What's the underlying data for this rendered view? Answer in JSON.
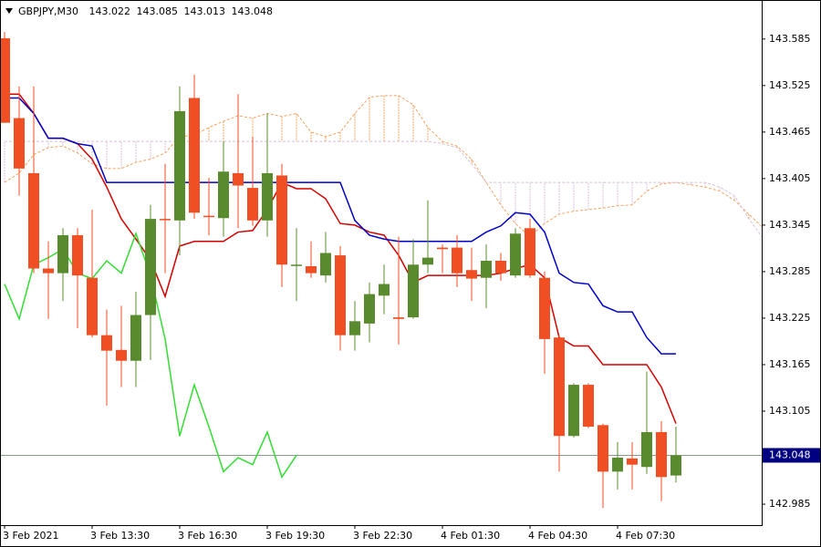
{
  "chart_data": {
    "type": "candlestick",
    "title": "GBPJPY,M30",
    "categories": [
      "3 Feb 2021",
      null,
      null,
      null,
      null,
      null,
      "3 Feb 13:30",
      null,
      null,
      null,
      null,
      null,
      "3 Feb 16:30",
      null,
      null,
      null,
      null,
      null,
      "3 Feb 19:30",
      null,
      null,
      null,
      null,
      null,
      "3 Feb 22:30",
      null,
      null,
      null,
      null,
      null,
      "4 Feb 01:30",
      null,
      null,
      null,
      null,
      null,
      "4 Feb 04:30",
      null,
      null,
      null,
      null,
      null,
      "4 Feb 07:30",
      null,
      null,
      null,
      null,
      null,
      null,
      null,
      null,
      null,
      null
    ],
    "open": [
      143.586,
      143.483,
      143.412,
      143.289,
      143.283,
      143.332,
      143.277,
      143.203,
      143.184,
      143.17,
      143.229,
      143.353,
      143.351,
      143.509,
      143.357,
      143.354,
      143.412,
      143.393,
      143.351,
      143.409,
      143.294,
      143.292,
      143.28,
      143.306,
      143.203,
      143.218,
      143.254,
      143.226,
      143.226,
      143.294,
      143.316,
      143.316,
      143.287,
      143.277,
      143.299,
      143.28,
      143.341,
      143.277,
      143.2,
      143.073,
      143.139,
      143.087,
      143.027,
      143.044,
      143.033,
      143.078,
      143.022,
      null,
      null,
      null,
      null,
      null,
      null
    ],
    "high": [
      143.594,
      143.524,
      143.524,
      143.324,
      143.341,
      143.341,
      143.365,
      143.236,
      143.241,
      143.259,
      143.371,
      143.424,
      143.524,
      143.539,
      143.406,
      143.453,
      143.514,
      143.459,
      143.489,
      143.424,
      143.341,
      143.324,
      143.336,
      143.318,
      143.247,
      143.271,
      143.294,
      143.33,
      143.327,
      143.377,
      143.32,
      143.332,
      143.316,
      143.32,
      143.309,
      143.341,
      143.353,
      143.285,
      143.203,
      143.141,
      143.141,
      143.089,
      143.065,
      143.065,
      143.156,
      143.092,
      143.085,
      null,
      null,
      null,
      null,
      null,
      null
    ],
    "low": [
      143.477,
      143.383,
      143.283,
      143.224,
      143.247,
      143.212,
      143.2,
      143.112,
      143.136,
      143.136,
      143.171,
      143.283,
      143.306,
      143.353,
      143.332,
      143.33,
      143.341,
      143.344,
      143.33,
      143.265,
      143.247,
      143.277,
      143.271,
      143.183,
      143.183,
      143.194,
      143.23,
      143.191,
      143.224,
      143.283,
      143.283,
      143.265,
      143.247,
      143.238,
      143.273,
      143.277,
      143.277,
      143.153,
      143.027,
      143.071,
      143.083,
      142.98,
      143.004,
      143.004,
      143.024,
      142.989,
      143.013,
      null,
      null,
      null,
      null,
      null,
      null
    ],
    "close": [
      143.477,
      143.418,
      143.289,
      143.283,
      143.332,
      143.28,
      143.203,
      143.183,
      143.17,
      143.229,
      143.353,
      143.352,
      143.492,
      143.361,
      143.356,
      143.414,
      143.396,
      143.351,
      143.412,
      143.294,
      143.294,
      143.283,
      143.309,
      143.203,
      143.221,
      143.256,
      143.269,
      143.224,
      143.294,
      143.303,
      143.314,
      143.283,
      143.276,
      143.299,
      143.283,
      143.334,
      143.28,
      143.198,
      143.073,
      143.139,
      143.085,
      143.027,
      143.045,
      143.036,
      143.078,
      143.02,
      143.048,
      null,
      null,
      null,
      null,
      null,
      null
    ],
    "up_color": "#5a8a2e",
    "down_color": "#f04e23",
    "lines": [
      {
        "color": "#d40000",
        "values": [
          143.514,
          143.514,
          143.489,
          143.457,
          143.457,
          143.45,
          143.43,
          143.394,
          143.353,
          143.327,
          143.3,
          143.253,
          143.318,
          143.324,
          143.324,
          143.324,
          143.336,
          143.338,
          143.365,
          143.4,
          143.392,
          143.392,
          143.379,
          143.347,
          143.345,
          143.336,
          143.332,
          143.306,
          143.271,
          143.28,
          143.28,
          143.28,
          143.28,
          143.28,
          143.283,
          143.289,
          143.294,
          143.277,
          143.2,
          143.189,
          143.189,
          143.165,
          143.165,
          143.165,
          143.165,
          143.136,
          143.089,
          null,
          null,
          null,
          null,
          null,
          null
        ]
      },
      {
        "color": "#0000c8",
        "values": [
          143.509,
          143.509,
          143.489,
          143.457,
          143.457,
          143.45,
          143.447,
          143.4,
          143.4,
          143.4,
          143.4,
          143.4,
          143.4,
          143.4,
          143.4,
          143.4,
          143.4,
          143.4,
          143.4,
          143.4,
          143.4,
          143.4,
          143.4,
          143.4,
          143.351,
          143.332,
          143.327,
          143.324,
          143.324,
          143.324,
          143.324,
          143.324,
          143.324,
          143.336,
          143.344,
          143.361,
          143.359,
          143.336,
          143.283,
          143.271,
          143.269,
          143.241,
          143.233,
          143.233,
          143.2,
          143.179,
          143.179,
          null,
          null,
          null,
          null,
          null,
          null
        ]
      },
      {
        "color": "#33dd33",
        "values": [
          143.269,
          143.224,
          143.294,
          143.303,
          143.314,
          143.283,
          143.276,
          143.299,
          143.283,
          143.334,
          143.28,
          143.198,
          143.073,
          143.139,
          143.085,
          143.027,
          143.045,
          143.036,
          143.078,
          143.02,
          143.048,
          null,
          null,
          null,
          null,
          null,
          null,
          null,
          null,
          null,
          null,
          null,
          null,
          null,
          null,
          null,
          null,
          null,
          null,
          null,
          null,
          null,
          null,
          null,
          null,
          null,
          null,
          null,
          null,
          null,
          null,
          null,
          null
        ]
      }
    ],
    "cloud": {
      "span_a": {
        "color": "#f4a460",
        "values": [
          143.4,
          143.412,
          143.436,
          143.445,
          143.447,
          143.438,
          143.424,
          143.418,
          143.418,
          143.426,
          143.43,
          143.438,
          143.459,
          143.461,
          143.471,
          143.479,
          143.486,
          143.483,
          143.489,
          143.485,
          143.489,
          143.465,
          143.459,
          143.465,
          143.489,
          143.51,
          143.512,
          143.512,
          143.5,
          143.471,
          143.453,
          143.447,
          143.43,
          143.4,
          143.371,
          143.347,
          143.33,
          143.347,
          143.359,
          143.363,
          143.365,
          143.367,
          143.37,
          143.371,
          143.389,
          143.398,
          143.4,
          143.397,
          143.394,
          143.389,
          143.377,
          143.359,
          143.341
        ]
      },
      "span_b": {
        "color": "#d8bfd8",
        "values": [
          143.453,
          143.453,
          143.453,
          143.453,
          143.453,
          143.453,
          143.453,
          143.453,
          143.453,
          143.453,
          143.453,
          143.453,
          143.453,
          143.453,
          143.453,
          143.453,
          143.453,
          143.453,
          143.453,
          143.453,
          143.453,
          143.453,
          143.453,
          143.453,
          143.453,
          143.453,
          143.453,
          143.453,
          143.453,
          143.453,
          143.45,
          143.445,
          143.424,
          143.4,
          143.4,
          143.4,
          143.4,
          143.4,
          143.4,
          143.4,
          143.4,
          143.4,
          143.4,
          143.4,
          143.4,
          143.4,
          143.4,
          143.4,
          143.4,
          143.394,
          143.383,
          143.353,
          143.327
        ]
      }
    },
    "price_line_color": "#8a9a8a",
    "price_label_color": "#000080",
    "ylim": [
      142.958,
      143.633
    ],
    "yticks": [
      143.585,
      143.525,
      143.465,
      143.405,
      143.345,
      143.285,
      143.225,
      143.165,
      143.105,
      142.985
    ]
  }
}
